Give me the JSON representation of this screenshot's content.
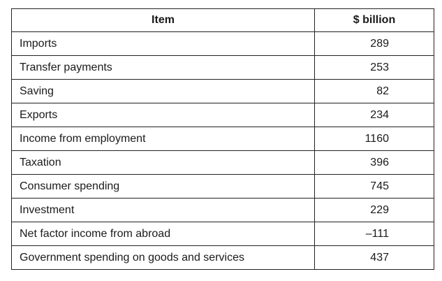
{
  "table": {
    "headers": [
      "Item",
      "$ billion"
    ],
    "rows": [
      {
        "item": "Imports",
        "value": "289"
      },
      {
        "item": "Transfer payments",
        "value": "253"
      },
      {
        "item": "Saving",
        "value": "82"
      },
      {
        "item": "Exports",
        "value": "234"
      },
      {
        "item": "Income from employment",
        "value": "1160"
      },
      {
        "item": "Taxation",
        "value": "396"
      },
      {
        "item": "Consumer spending",
        "value": "745"
      },
      {
        "item": "Investment",
        "value": "229"
      },
      {
        "item": "Net factor income from abroad",
        "value": "–111"
      },
      {
        "item": "Government spending on goods and services",
        "value": "437"
      }
    ]
  }
}
